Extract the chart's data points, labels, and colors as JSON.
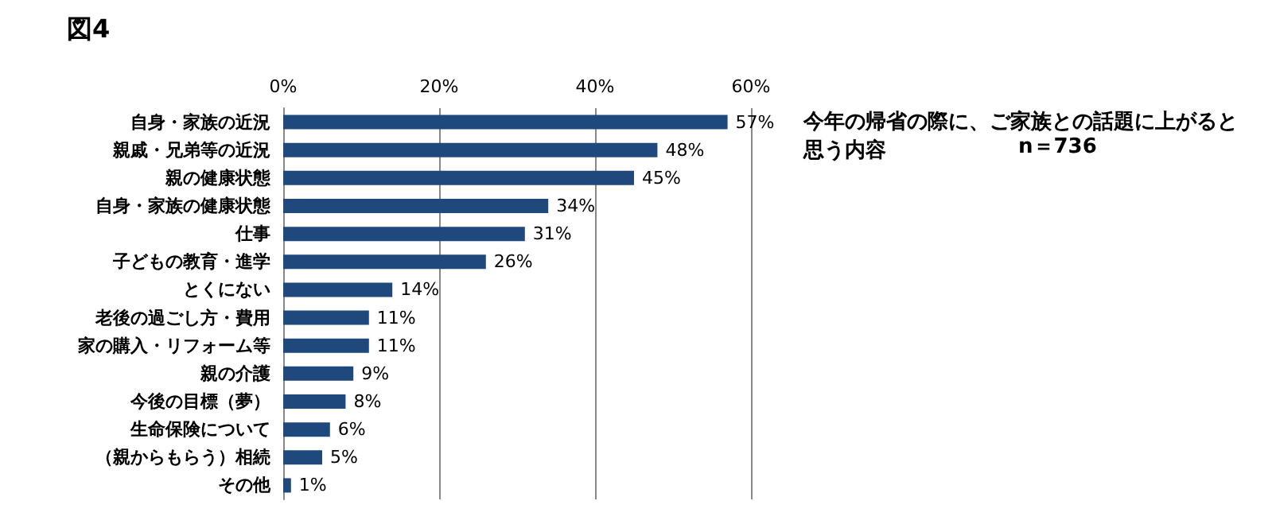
{
  "chart_data": {
    "type": "bar",
    "orientation": "horizontal",
    "title": "図4",
    "subtitle": "今年の帰省の際に、ご家族との話題に上がると思う内容",
    "annotations": [
      "n＝736"
    ],
    "categories": [
      "自身・家族の近況",
      "親戚・兄弟等の近況",
      "親の健康状態",
      "自身・家族の健康状態",
      "仕事",
      "子どもの教育・進学",
      "とくにない",
      "老後の過ごし方・費用",
      "家の購入・リフォーム等",
      "親の介護",
      "今後の目標（夢）",
      "生命保険について",
      "（親からもらう）相続",
      "その他"
    ],
    "values": [
      57,
      48,
      45,
      34,
      31,
      26,
      14,
      11,
      11,
      9,
      8,
      6,
      5,
      1
    ],
    "value_labels": [
      "57%",
      "48%",
      "45%",
      "34%",
      "31%",
      "26%",
      "14%",
      "11%",
      "11%",
      "9%",
      "8%",
      "6%",
      "5%",
      "1%"
    ],
    "color": "#1f497d",
    "xlim": [
      0,
      60
    ],
    "xticks": [
      {
        "value": 0,
        "label": "0%"
      },
      {
        "value": 20,
        "label": "20%"
      },
      {
        "value": 40,
        "label": "40%"
      },
      {
        "value": 60,
        "label": "60%"
      }
    ],
    "grid": "x"
  }
}
